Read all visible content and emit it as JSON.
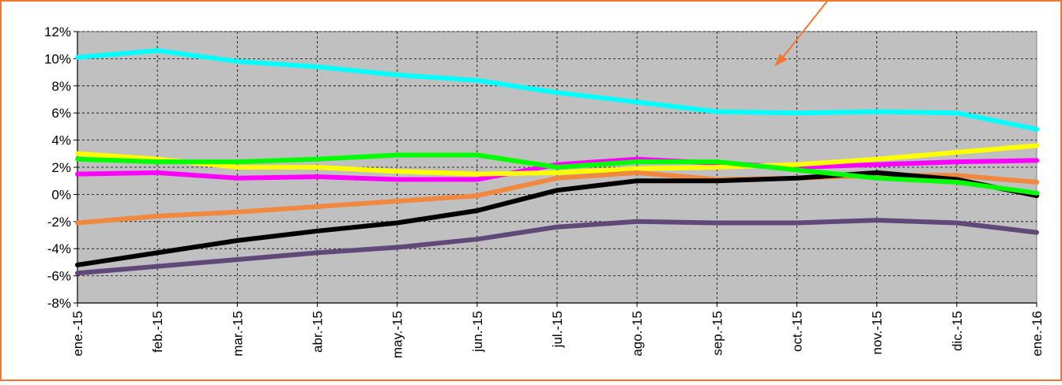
{
  "chart_data": {
    "type": "line",
    "title": "",
    "xlabel": "",
    "ylabel": "",
    "categories": [
      "ene.-15",
      "feb.-15",
      "mar.-15",
      "abr.-15",
      "may.-15",
      "jun.-15",
      "jul.-15",
      "ago.-15",
      "sep.-15",
      "oct.-15",
      "nov.-15",
      "dic.-15",
      "ene.-16"
    ],
    "ylim": [
      -8,
      12
    ],
    "y_ticks": [
      -8,
      -6,
      -4,
      -2,
      0,
      2,
      4,
      6,
      8,
      10,
      12
    ],
    "y_tick_labels": [
      "-8%",
      "-6%",
      "-4%",
      "-2%",
      "0%",
      "2%",
      "4%",
      "6%",
      "8%",
      "10%",
      "12%"
    ],
    "grid": true,
    "plot_background": "#c0c0c0",
    "border_color": "#f07830",
    "annotation_arrow_color": "#f07830",
    "series": [
      {
        "color": "#00ffff",
        "values": [
          10.1,
          10.6,
          9.8,
          9.4,
          8.8,
          8.4,
          7.5,
          6.8,
          6.1,
          6.0,
          6.1,
          6.0,
          4.8
        ]
      },
      {
        "color": "#ff00ff",
        "values": [
          1.5,
          1.6,
          1.2,
          1.3,
          1.1,
          1.1,
          2.2,
          2.6,
          2.3,
          2.0,
          2.2,
          2.4,
          2.5
        ]
      },
      {
        "color": "#ffff00",
        "values": [
          3.0,
          2.6,
          2.0,
          2.0,
          1.7,
          1.5,
          1.6,
          1.9,
          2.0,
          2.2,
          2.6,
          3.1,
          3.6
        ]
      },
      {
        "color": "#f08840",
        "values": [
          -2.1,
          -1.6,
          -1.3,
          -0.9,
          -0.5,
          -0.1,
          1.2,
          1.6,
          1.1,
          1.2,
          1.4,
          1.4,
          0.9
        ]
      },
      {
        "color": "#000000",
        "values": [
          -5.2,
          -4.3,
          -3.4,
          -2.7,
          -2.1,
          -1.2,
          0.3,
          1.0,
          1.0,
          1.2,
          1.6,
          1.1,
          -0.1
        ]
      },
      {
        "color": "#604878",
        "values": [
          -5.8,
          -5.3,
          -4.8,
          -4.3,
          -3.9,
          -3.3,
          -2.4,
          -2.0,
          -2.1,
          -2.1,
          -1.9,
          -2.1,
          -2.8
        ]
      },
      {
        "color": "#00ff00",
        "values": [
          2.6,
          2.4,
          2.4,
          2.6,
          2.9,
          2.9,
          2.0,
          2.4,
          2.4,
          1.8,
          1.2,
          0.9,
          0.1
        ]
      }
    ]
  }
}
